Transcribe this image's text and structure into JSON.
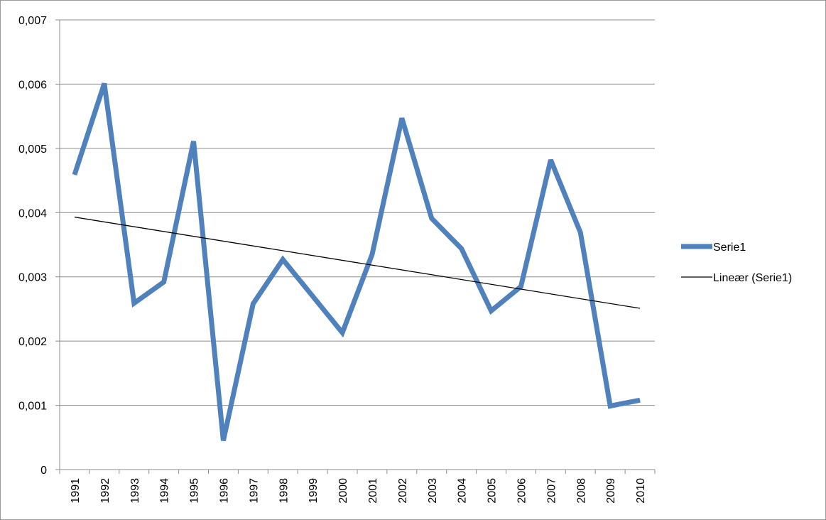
{
  "chart_data": {
    "type": "line",
    "categories": [
      "1991",
      "1992",
      "1993",
      "1994",
      "1995",
      "1996",
      "1997",
      "1998",
      "1999",
      "2000",
      "2001",
      "2002",
      "2003",
      "2004",
      "2005",
      "2006",
      "2007",
      "2008",
      "2009",
      "2010"
    ],
    "series": [
      {
        "name": "Serie1",
        "color": "#4f81bd",
        "values": [
          0.00459,
          0.00601,
          0.00259,
          0.00292,
          0.00511,
          0.00045,
          0.00258,
          0.00327,
          0.0027,
          0.00213,
          0.00335,
          0.00547,
          0.00391,
          0.00344,
          0.00247,
          0.00285,
          0.00482,
          0.00369,
          0.00099,
          0.00108
        ]
      }
    ],
    "trendline": {
      "name": "Lineær (Serie1)",
      "type": "linear",
      "color": "#000000",
      "start": 0.00393,
      "end": 0.00251
    },
    "yticks": [
      "0",
      "0,001",
      "0,002",
      "0,003",
      "0,004",
      "0,005",
      "0,006",
      "0,007"
    ],
    "ylim": [
      0,
      0.007
    ],
    "grid": true,
    "legend": "right"
  }
}
